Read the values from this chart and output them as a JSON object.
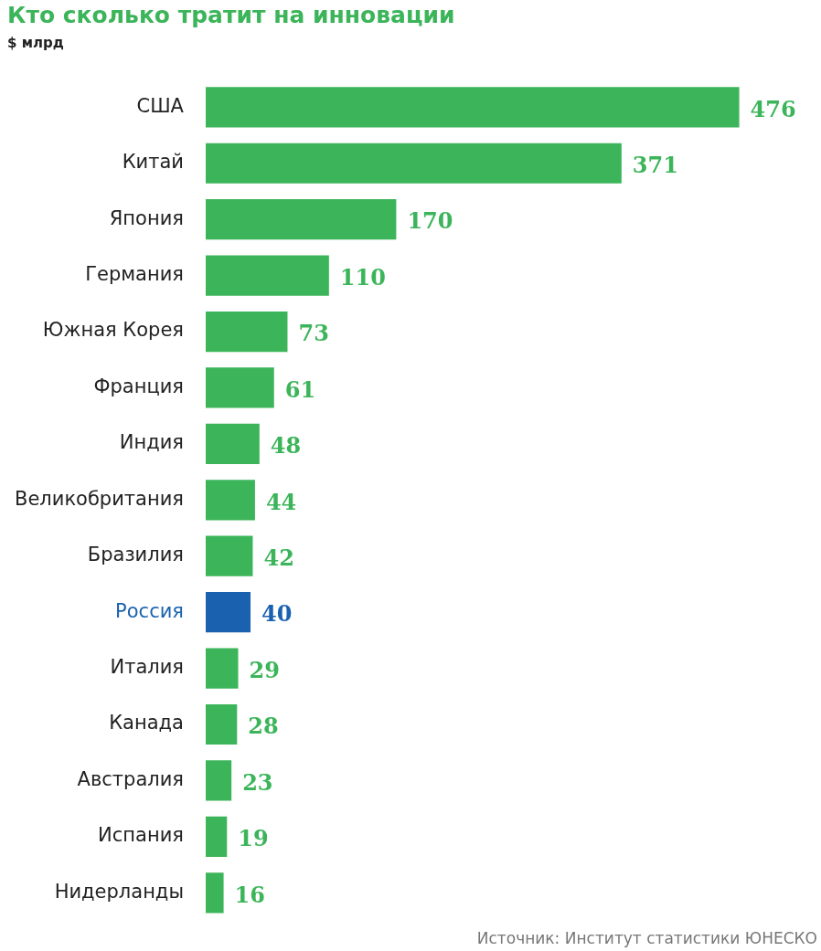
{
  "chart_data": {
    "type": "bar",
    "orientation": "horizontal",
    "title": "Кто сколько тратит на инновации",
    "subtitle": "$ млрд",
    "categories": [
      "США",
      "Китай",
      "Япония",
      "Германия",
      "Южная Корея",
      "Франция",
      "Индия",
      "Великобритания",
      "Бразилия",
      "Россия",
      "Италия",
      "Канада",
      "Австралия",
      "Испания",
      "Нидерланды"
    ],
    "values": [
      476,
      371,
      170,
      110,
      73,
      61,
      48,
      44,
      42,
      40,
      29,
      28,
      23,
      19,
      16
    ],
    "colors": [
      "#3cb55a",
      "#3cb55a",
      "#3cb55a",
      "#3cb55a",
      "#3cb55a",
      "#3cb55a",
      "#3cb55a",
      "#3cb55a",
      "#3cb55a",
      "#1a62b0",
      "#3cb55a",
      "#3cb55a",
      "#3cb55a",
      "#3cb55a",
      "#3cb55a"
    ],
    "data_labels": true,
    "annotations": [
      "Источник: Институт статистики ЮНЕСКО"
    ]
  }
}
